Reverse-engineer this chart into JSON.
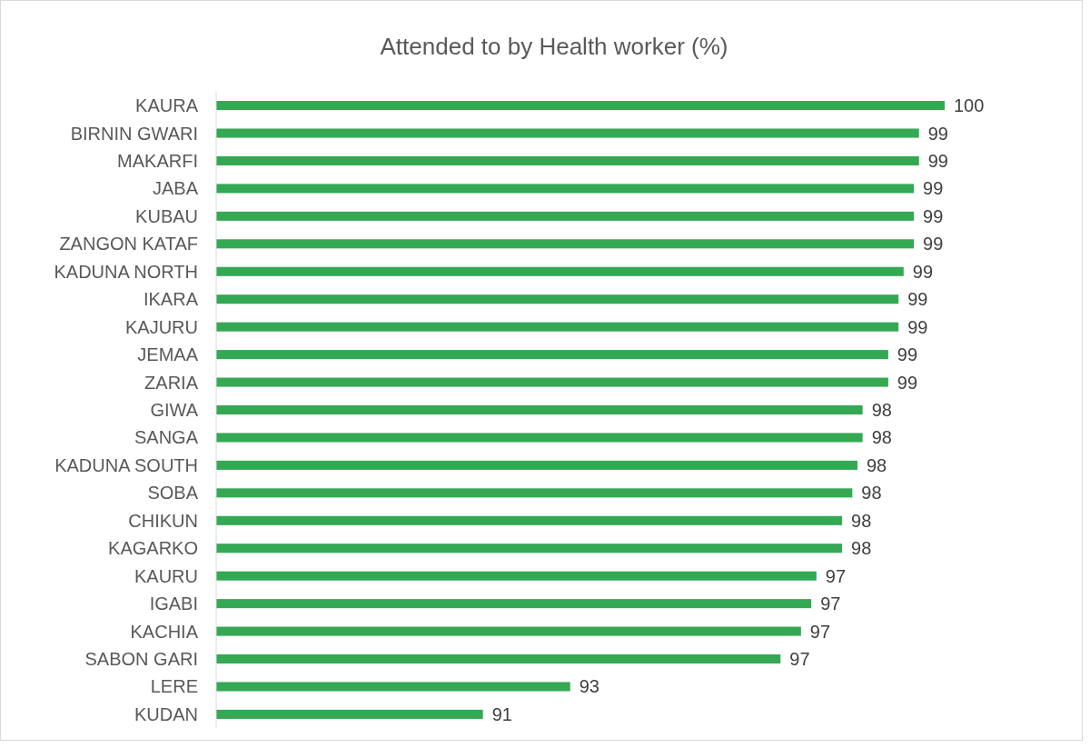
{
  "chart_data": {
    "type": "bar",
    "orientation": "horizontal",
    "title": "Attended to by Health worker (%)",
    "categories": [
      "KAURA",
      "BIRNIN GWARI",
      "MAKARFI",
      "JABA",
      "KUBAU",
      "ZANGON KATAF",
      "KADUNA NORTH",
      "IKARA",
      "KAJURU",
      "JEMAA",
      "ZARIA",
      "GIWA",
      "SANGA",
      "KADUNA SOUTH",
      "SOBA",
      "CHIKUN",
      "KAGARKO",
      "KAURU",
      "IGABI",
      "KACHIA",
      "SABON GARI",
      "LERE",
      "KUDAN"
    ],
    "values": [
      100,
      99.5,
      99.5,
      99.4,
      99.4,
      99.4,
      99.2,
      99.1,
      99.1,
      98.9,
      98.9,
      98.4,
      98.4,
      98.3,
      98.2,
      98.0,
      98.0,
      97.5,
      97.4,
      97.2,
      96.8,
      92.7,
      91.0
    ],
    "value_labels": [
      "100",
      "99",
      "99",
      "99",
      "99",
      "99",
      "99",
      "99",
      "99",
      "99",
      "99",
      "98",
      "98",
      "98",
      "98",
      "98",
      "98",
      "97",
      "97",
      "97",
      "97",
      "93",
      "91"
    ],
    "color": "#34a853",
    "xlim": [
      85.8,
      100
    ],
    "tick_labels": "y"
  }
}
